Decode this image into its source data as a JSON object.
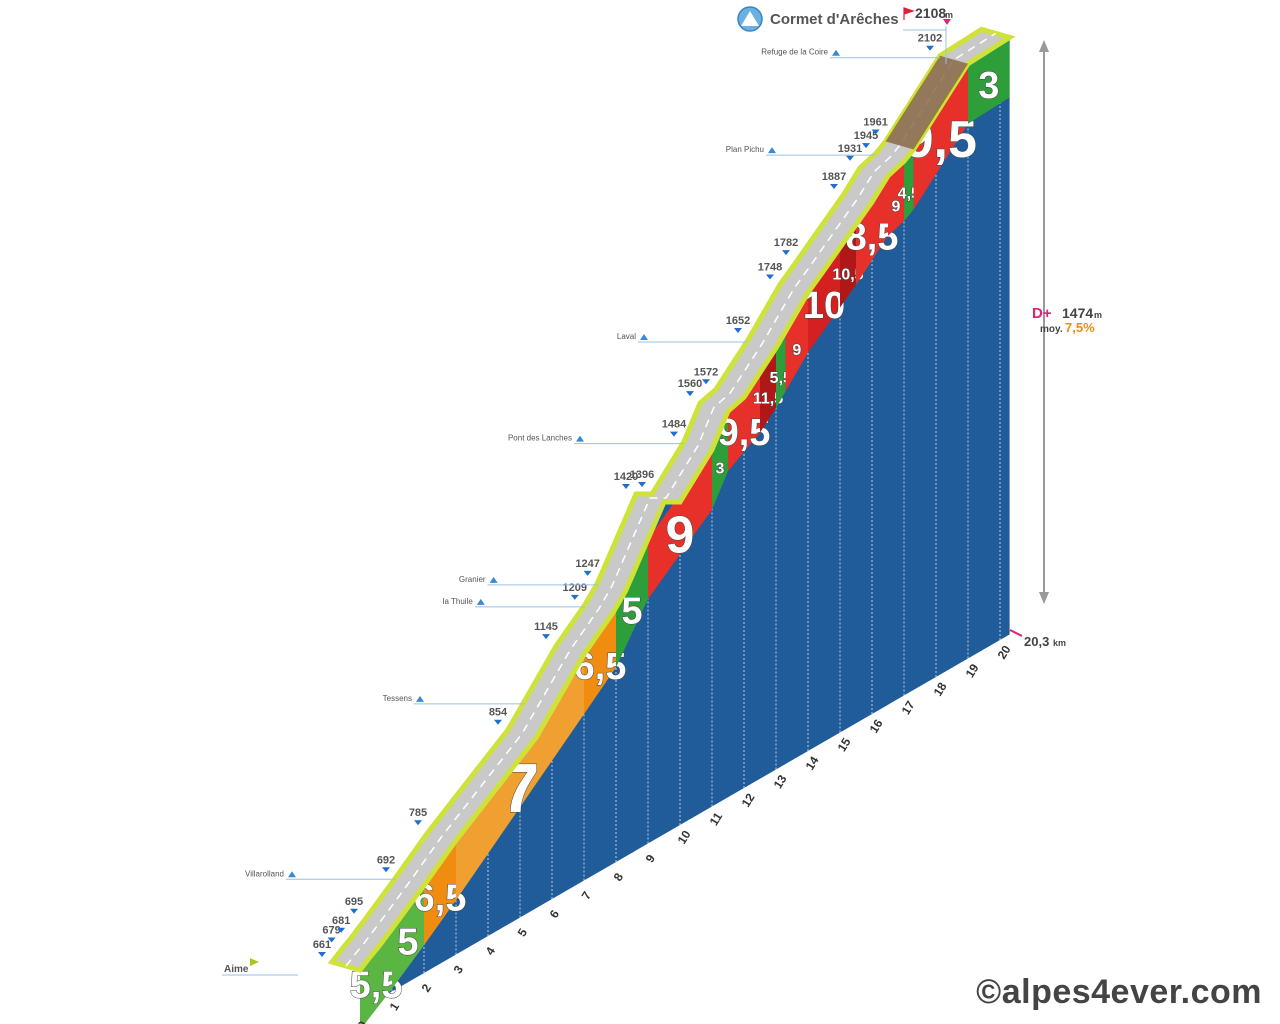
{
  "summit": {
    "name": "Cormet d'Arêches",
    "alt": "2108",
    "unit": "m"
  },
  "start": {
    "name": "Aime",
    "alt": "661"
  },
  "stats": {
    "dplus_label": "D+",
    "dplus": "1474",
    "dplus_unit": "m",
    "avg_label": "moy.",
    "avg": "7,5%"
  },
  "distance": {
    "value": "20,3",
    "unit": "km"
  },
  "watermark": "©alpes4ever.com",
  "colors": {
    "road": "#c9c9c9",
    "edge": "#cfe23a",
    "wall": "#1f5c99",
    "g3": "#2e9e3a",
    "g5": "#5ab543",
    "g6": "#f0a030",
    "g7": "#f08c10",
    "g9": "#e8302a",
    "g10": "#d42020",
    "g11": "#b01818",
    "gravel": "#8a6a48"
  },
  "chart_data": {
    "type": "area",
    "title": "Cormet d'Arêches",
    "xlabel": "km",
    "ylabel": "m",
    "xlim": [
      0,
      20.3
    ],
    "ylim": [
      661,
      2108
    ],
    "km_ticks": [
      "0",
      "1",
      "2",
      "3",
      "4",
      "5",
      "6",
      "7",
      "8",
      "9",
      "10",
      "11",
      "12",
      "13",
      "14",
      "15",
      "16",
      "17",
      "18",
      "19",
      "20"
    ],
    "profile": [
      {
        "km": 0,
        "alt": 661
      },
      {
        "km": 0.3,
        "alt": 679
      },
      {
        "km": 0.6,
        "alt": 695
      },
      {
        "km": 1,
        "alt": 720
      },
      {
        "km": 2,
        "alt": 785
      },
      {
        "km": 3,
        "alt": 854
      },
      {
        "km": 5.5,
        "alt": 1000
      },
      {
        "km": 7,
        "alt": 1145
      },
      {
        "km": 7.9,
        "alt": 1209
      },
      {
        "km": 8.3,
        "alt": 1247
      },
      {
        "km": 9.5,
        "alt": 1420
      },
      {
        "km": 10,
        "alt": 1396
      },
      {
        "km": 11,
        "alt": 1484
      },
      {
        "km": 11.5,
        "alt": 1560
      },
      {
        "km": 12,
        "alt": 1572
      },
      {
        "km": 13,
        "alt": 1652
      },
      {
        "km": 14,
        "alt": 1748
      },
      {
        "km": 14.5,
        "alt": 1782
      },
      {
        "km": 16,
        "alt": 1887
      },
      {
        "km": 16.5,
        "alt": 1931
      },
      {
        "km": 17,
        "alt": 1945
      },
      {
        "km": 17.3,
        "alt": 1961
      },
      {
        "km": 19,
        "alt": 2102
      },
      {
        "km": 20.3,
        "alt": 2108
      }
    ],
    "segments": [
      {
        "from": 0,
        "to": 1,
        "grade": "5,5",
        "color": "g5"
      },
      {
        "from": 1,
        "to": 2,
        "grade": "5",
        "color": "g5"
      },
      {
        "from": 2,
        "to": 3,
        "grade": "6,5",
        "color": "g7"
      },
      {
        "from": 3,
        "to": 7,
        "grade": "7",
        "color": "g6"
      },
      {
        "from": 7,
        "to": 8,
        "grade": "6,5",
        "color": "g7"
      },
      {
        "from": 8,
        "to": 9,
        "grade": "5",
        "color": "g3"
      },
      {
        "from": 9,
        "to": 11,
        "grade": "9",
        "color": "g9"
      },
      {
        "from": 11,
        "to": 11.5,
        "grade": "3",
        "color": "g3"
      },
      {
        "from": 11.5,
        "to": 12.5,
        "grade": "9,5",
        "color": "g9"
      },
      {
        "from": 12.5,
        "to": 13,
        "grade": "11,5",
        "color": "g11"
      },
      {
        "from": 13,
        "to": 13.3,
        "grade": "5,5",
        "color": "g3"
      },
      {
        "from": 13.3,
        "to": 14,
        "grade": "9",
        "color": "g9"
      },
      {
        "from": 14,
        "to": 15,
        "grade": "10",
        "color": "g10"
      },
      {
        "from": 15,
        "to": 15.5,
        "grade": "10,5",
        "color": "g11"
      },
      {
        "from": 15.5,
        "to": 16.5,
        "grade": "8,5",
        "color": "g9"
      },
      {
        "from": 16.5,
        "to": 17,
        "grade": "9",
        "color": "g9"
      },
      {
        "from": 17,
        "to": 17.3,
        "grade": "4,5",
        "color": "g3"
      },
      {
        "from": 17.3,
        "to": 19,
        "grade": "9,5",
        "color": "g9"
      },
      {
        "from": 19,
        "to": 20.3,
        "grade": "3",
        "color": "g3"
      }
    ],
    "altitude_labels": [
      "661",
      "679",
      "681",
      "695",
      "692",
      "785",
      "854",
      "1145",
      "1209",
      "1247",
      "1420",
      "1396",
      "1484",
      "1560",
      "1572",
      "1652",
      "1748",
      "1782",
      "1887",
      "1931",
      "1945",
      "1961",
      "2102"
    ],
    "places": [
      {
        "name": "Villarolland",
        "km": 2
      },
      {
        "name": "Tessens",
        "km": 6
      },
      {
        "name": "la Thuile",
        "km": 7.9
      },
      {
        "name": "Granier",
        "km": 8.3
      },
      {
        "name": "Pont des Lanches",
        "km": 11
      },
      {
        "name": "Laval",
        "km": 13
      },
      {
        "name": "Plan Pichu",
        "km": 17
      },
      {
        "name": "Refuge de la Coire",
        "km": 19
      }
    ]
  }
}
